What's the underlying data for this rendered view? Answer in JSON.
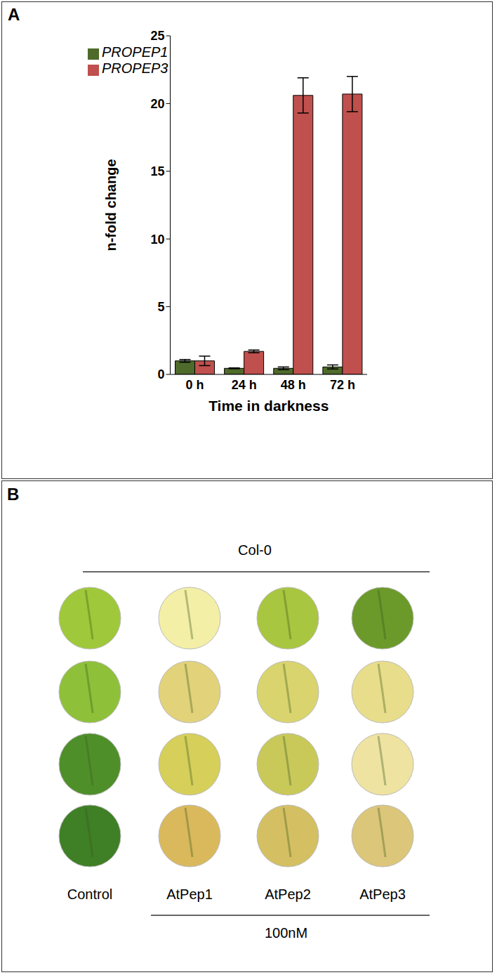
{
  "chart_data": {
    "type": "bar",
    "title": "A",
    "x_label": "Time in darkness",
    "y_label": "n-fold change",
    "categories": [
      "0 h",
      "24 h",
      "48 h",
      "72 h"
    ],
    "series": [
      {
        "name": "PROPEP1",
        "color": "#4f6b2b",
        "values": [
          1.0,
          0.45,
          0.45,
          0.55
        ],
        "errors": [
          0.1,
          0.03,
          0.1,
          0.15
        ]
      },
      {
        "name": "PROPEP3",
        "color": "#c0504d",
        "values": [
          1.0,
          1.7,
          20.6,
          20.7
        ],
        "errors": [
          0.35,
          0.1,
          1.3,
          1.3
        ]
      }
    ],
    "ylim": [
      0,
      25
    ],
    "yticks": [
      0,
      5,
      10,
      15,
      20,
      25
    ],
    "grid": false,
    "legend": "upper left"
  },
  "panel_b": {
    "title": "B",
    "genotype": "Col-0",
    "labels": [
      "Control",
      "AtPep1",
      "AtPep2",
      "AtPep3"
    ],
    "treatment": "100nM"
  }
}
